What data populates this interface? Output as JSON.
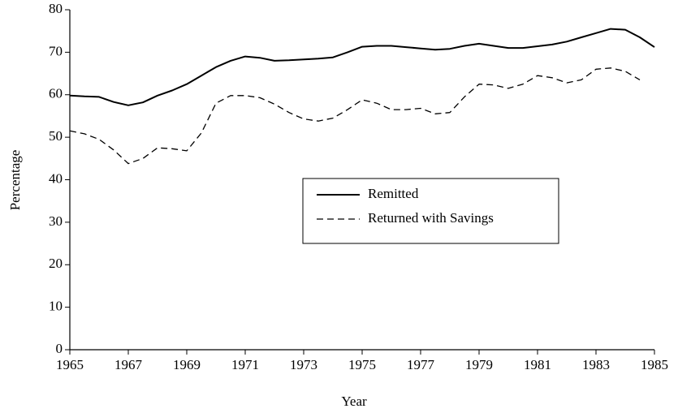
{
  "chart_data": {
    "type": "line",
    "xlabel": "Year",
    "ylabel": "Percentage",
    "x": [
      1965,
      1965.5,
      1966,
      1966.5,
      1967,
      1967.5,
      1968,
      1968.5,
      1969,
      1969.5,
      1970,
      1970.5,
      1971,
      1971.5,
      1972,
      1972.5,
      1973,
      1973.5,
      1974,
      1974.5,
      1975,
      1975.5,
      1976,
      1976.5,
      1977,
      1977.5,
      1978,
      1978.5,
      1979,
      1979.5,
      1980,
      1980.5,
      1981,
      1981.5,
      1982,
      1982.5,
      1983,
      1983.5,
      1984,
      1984.5,
      1985
    ],
    "series": [
      {
        "name": "Remitted",
        "color": "#000000",
        "dash": "solid",
        "values": [
          59.8,
          59.6,
          59.5,
          58.3,
          57.5,
          58.2,
          59.8,
          61,
          62.5,
          64.5,
          66.5,
          68,
          69,
          68.7,
          68,
          68.1,
          68.3,
          68.5,
          68.8,
          70,
          71.3,
          71.5,
          71.5,
          71.2,
          70.9,
          70.6,
          70.8,
          71.5,
          72,
          71.5,
          71,
          71,
          71.4,
          71.8,
          72.5,
          73.5,
          74.5,
          75.5,
          75.3,
          73.5,
          71.2
        ]
      },
      {
        "name": "Returned with Savings",
        "color": "#000000",
        "dash": "dashed",
        "values": [
          51.5,
          50.8,
          49.5,
          47,
          43.8,
          45,
          47.5,
          47.3,
          46.8,
          51,
          58,
          59.8,
          59.8,
          59.3,
          57.8,
          55.8,
          54.3,
          53.8,
          54.5,
          56.5,
          58.8,
          58,
          56.5,
          56.5,
          56.8,
          55.5,
          55.8,
          59.5,
          62.5,
          62.3,
          61.5,
          62.5,
          64.5,
          64,
          62.8,
          63.5,
          66,
          66.3,
          65.5,
          63.5,
          null
        ]
      }
    ],
    "xlim": [
      1965,
      1985
    ],
    "xticks": [
      1965,
      1967,
      1969,
      1971,
      1973,
      1975,
      1977,
      1979,
      1981,
      1983,
      1985
    ],
    "ylim": [
      0,
      80
    ],
    "yticks": [
      0,
      10,
      20,
      30,
      40,
      50,
      60,
      70,
      80
    ],
    "grid": false,
    "legend": "center"
  }
}
